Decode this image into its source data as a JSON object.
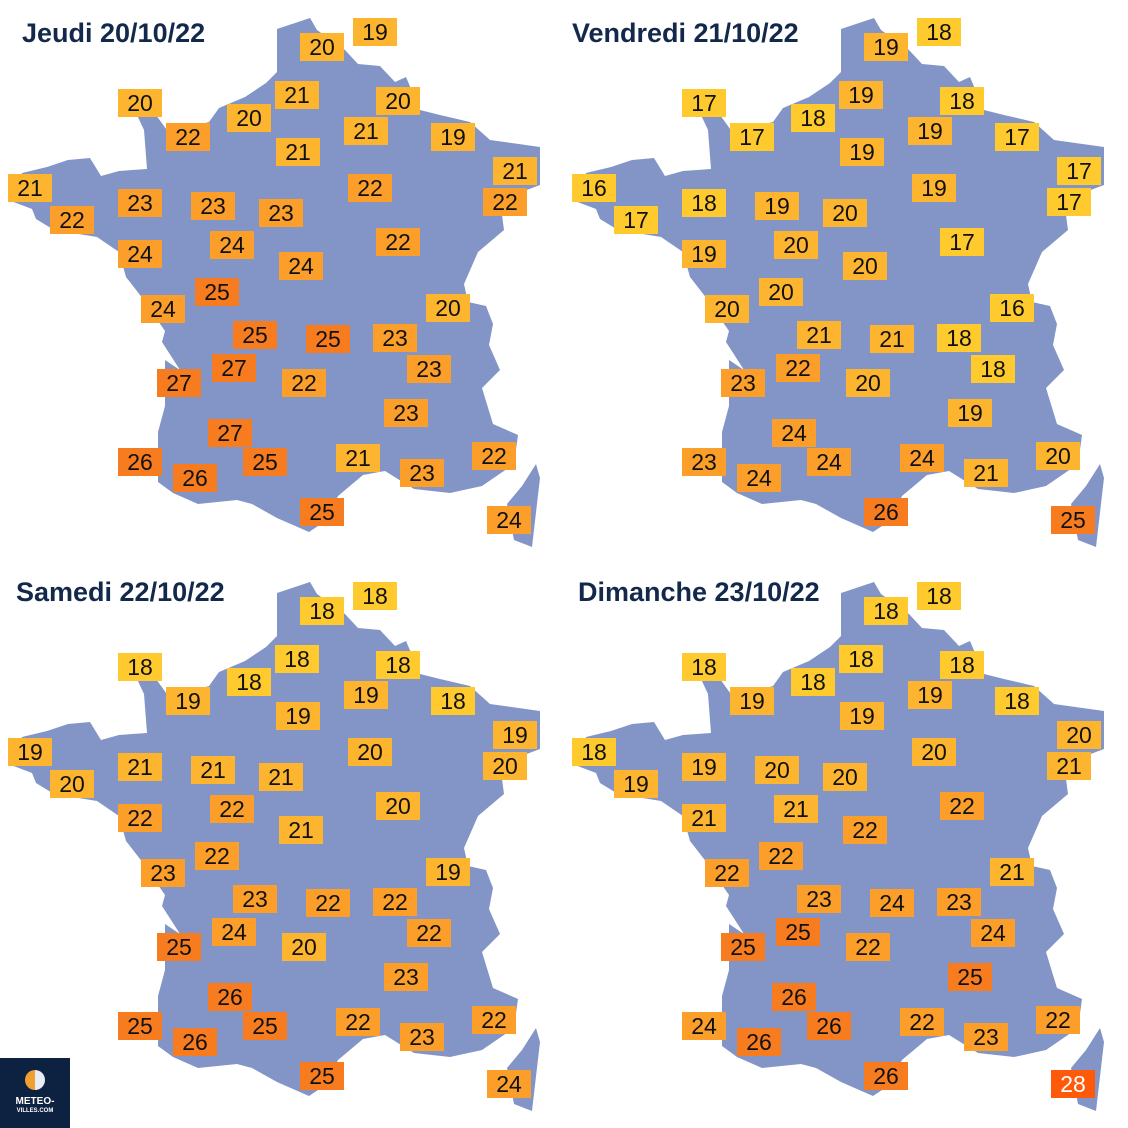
{
  "colors": {
    "land": "#8295c6",
    "title": "#13294b",
    "scale": [
      {
        "max": 18,
        "color": "#ffca2e",
        "text": "#111111"
      },
      {
        "max": 21,
        "color": "#fdb42f",
        "text": "#111111"
      },
      {
        "max": 24,
        "color": "#fb9e2a",
        "text": "#111111"
      },
      {
        "max": 27,
        "color": "#f77b1f",
        "text": "#111111"
      },
      {
        "max": 99,
        "color": "#ff5a0a",
        "text": "#ffffff"
      }
    ]
  },
  "maps": [
    {
      "title": "Jeudi 20/10/22",
      "temps": [
        19,
        20,
        20,
        22,
        20,
        21,
        21,
        20,
        19,
        21,
        21,
        22,
        23,
        23,
        23,
        22,
        21,
        22,
        24,
        24,
        24,
        22,
        25,
        24,
        20,
        25,
        25,
        23,
        27,
        23,
        27,
        22,
        23,
        27,
        26,
        26,
        25,
        21,
        23,
        22,
        25,
        24
      ]
    },
    {
      "title": "Vendredi 21/10/22",
      "temps": [
        18,
        19,
        17,
        17,
        18,
        19,
        19,
        18,
        17,
        19,
        16,
        17,
        18,
        19,
        20,
        19,
        17,
        17,
        19,
        20,
        20,
        17,
        20,
        20,
        16,
        21,
        21,
        18,
        22,
        18,
        23,
        20,
        19,
        24,
        23,
        24,
        24,
        24,
        21,
        20,
        26,
        25
      ]
    },
    {
      "title": "Samedi 22/10/22",
      "temps": [
        18,
        18,
        18,
        19,
        18,
        18,
        19,
        18,
        18,
        19,
        19,
        20,
        21,
        21,
        21,
        20,
        19,
        20,
        22,
        22,
        21,
        20,
        22,
        23,
        19,
        23,
        22,
        22,
        24,
        22,
        25,
        20,
        23,
        26,
        25,
        26,
        25,
        22,
        23,
        22,
        25,
        24
      ]
    },
    {
      "title": "Dimanche 23/10/22",
      "temps": [
        18,
        18,
        18,
        19,
        18,
        18,
        19,
        18,
        18,
        19,
        18,
        19,
        19,
        20,
        20,
        20,
        20,
        21,
        21,
        21,
        22,
        22,
        22,
        22,
        21,
        23,
        24,
        23,
        25,
        24,
        25,
        22,
        25,
        26,
        24,
        26,
        26,
        22,
        23,
        22,
        26,
        28
      ]
    }
  ],
  "logo": {
    "line1": "METEO-",
    "line2": "VILLES.COM"
  }
}
